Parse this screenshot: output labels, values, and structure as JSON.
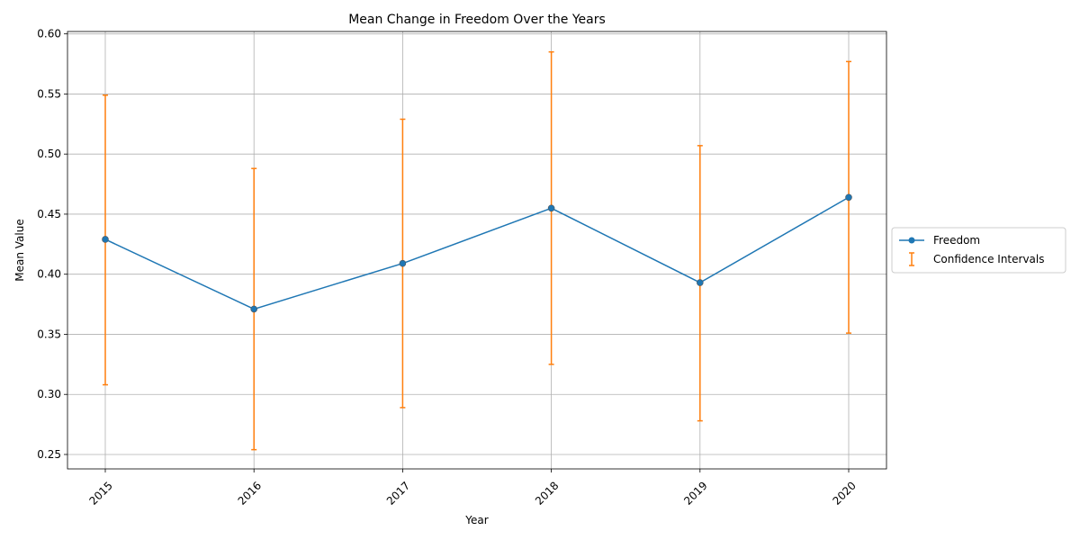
{
  "chart_data": {
    "type": "line",
    "title": "Mean Change in Freedom Over the Years",
    "xlabel": "Year",
    "ylabel": "Mean Value",
    "x": [
      "2015",
      "2016",
      "2017",
      "2018",
      "2019",
      "2020"
    ],
    "series": [
      {
        "name": "Freedom",
        "values": [
          0.429,
          0.371,
          0.409,
          0.455,
          0.393,
          0.464
        ],
        "color": "#1f77b4"
      }
    ],
    "error_bars": {
      "name": "Confidence Intervals",
      "color": "#ff7f0e",
      "lower": [
        0.308,
        0.254,
        0.289,
        0.325,
        0.278,
        0.351
      ],
      "upper": [
        0.549,
        0.488,
        0.529,
        0.585,
        0.507,
        0.577
      ]
    },
    "ylim": [
      0.238,
      0.602
    ],
    "yticks": [
      "0.25",
      "0.30",
      "0.35",
      "0.40",
      "0.45",
      "0.50",
      "0.55",
      "0.60"
    ],
    "grid": true,
    "legend": "center-right-outside"
  }
}
